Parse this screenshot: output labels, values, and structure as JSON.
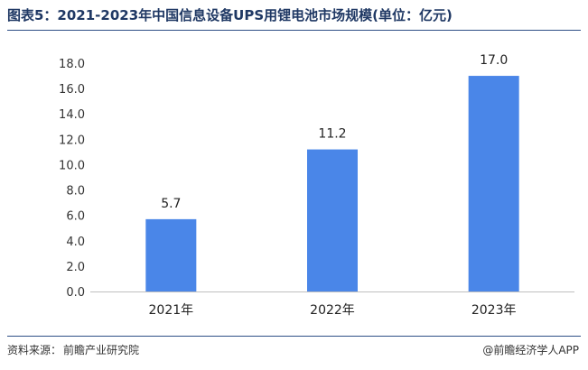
{
  "header": {
    "title": "图表5：2021-2023年中国信息设备UPS用锂电池市场规模(单位：亿元)"
  },
  "footer": {
    "source_label": "资料来源：",
    "source_value": "前瞻产业研究院",
    "brand": "@前瞻经济学人APP"
  },
  "colors": {
    "bar": "#4a86e8",
    "title": "#1f3864",
    "rule": "#2e4f86"
  },
  "chart_data": {
    "type": "bar",
    "title": "图表5：2021-2023年中国信息设备UPS用锂电池市场规模(单位：亿元)",
    "xlabel": "",
    "ylabel": "",
    "categories": [
      "2021年",
      "2022年",
      "2023年"
    ],
    "values": [
      5.7,
      11.2,
      17.0
    ],
    "data_labels": [
      "5.7",
      "11.2",
      "17.0"
    ],
    "ylim": [
      0,
      18
    ],
    "yticks": [
      0,
      2,
      4,
      6,
      8,
      10,
      12,
      14,
      16,
      18
    ],
    "ytick_labels": [
      "0.0",
      "2.0",
      "4.0",
      "6.0",
      "8.0",
      "10.0",
      "12.0",
      "14.0",
      "16.0",
      "18.0"
    ],
    "grid": false,
    "legend": "none"
  }
}
